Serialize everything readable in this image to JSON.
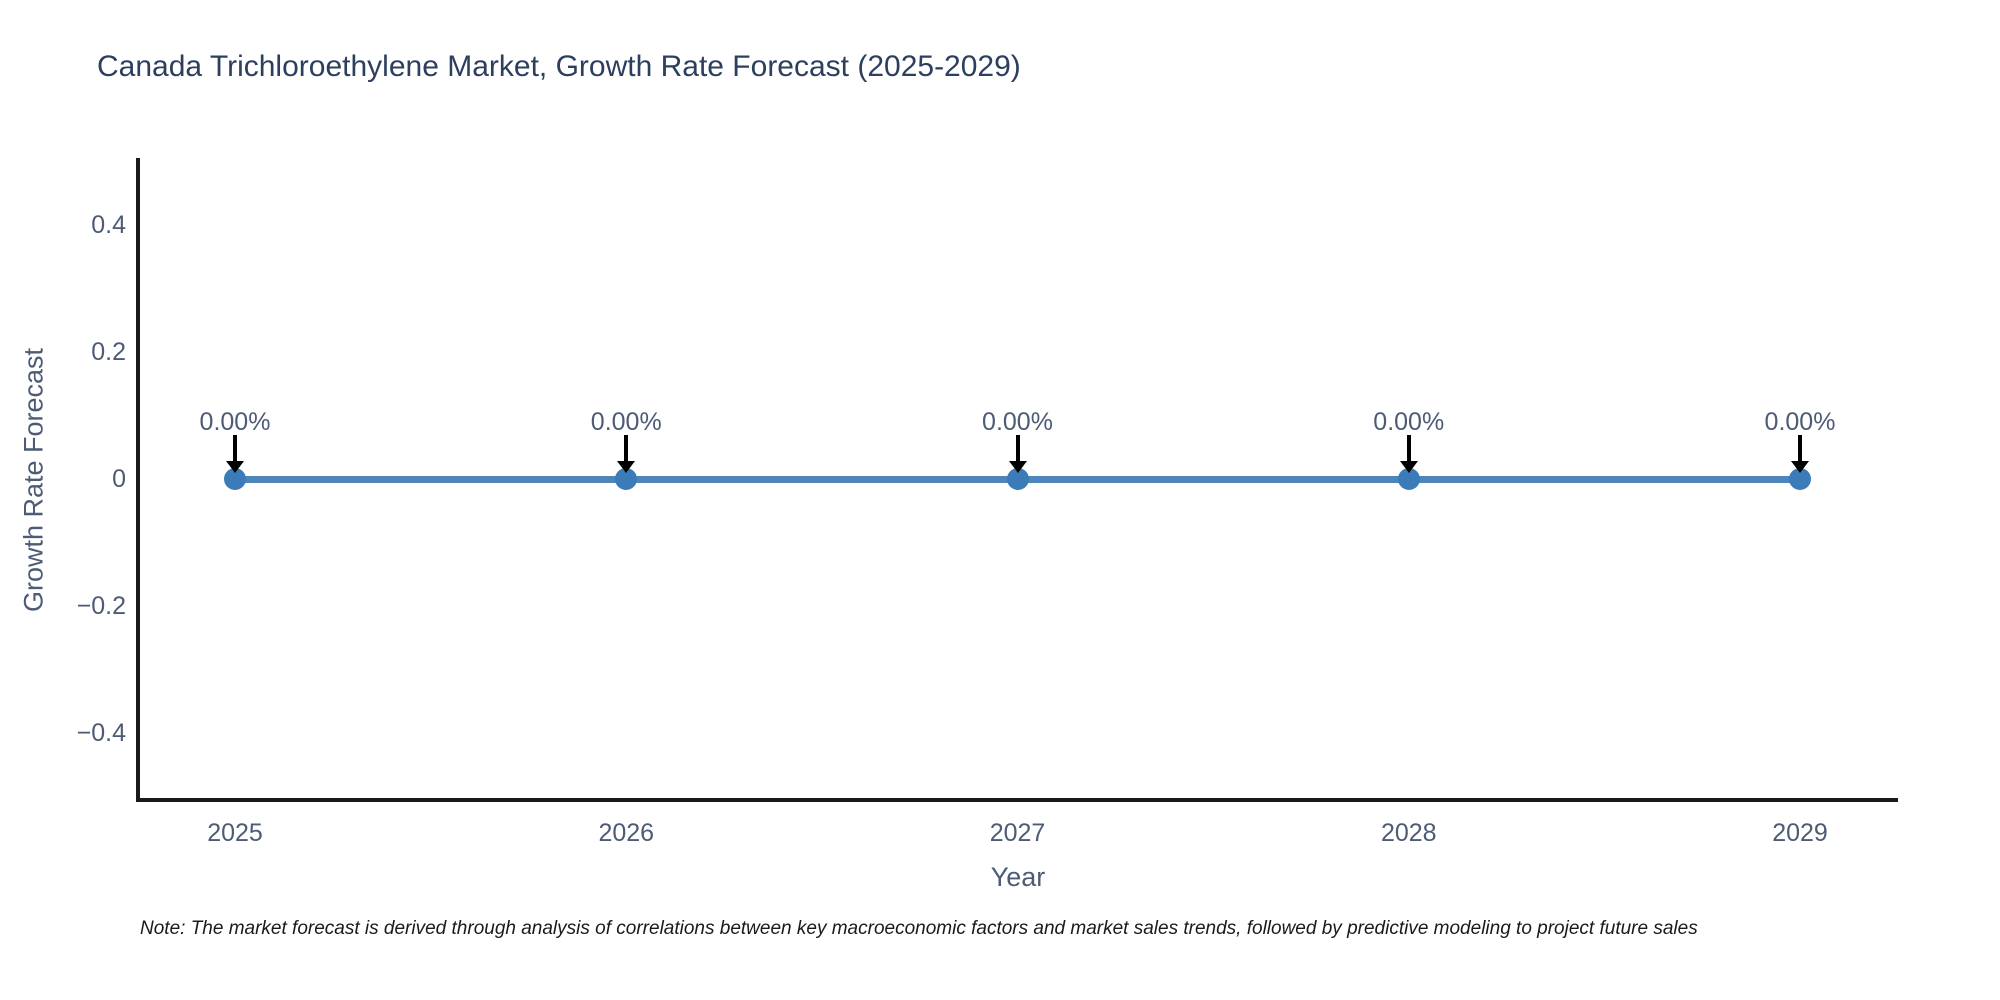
{
  "title": "Canada Trichloroethylene Market, Growth Rate Forecast (2025-2029)",
  "note": "Note: The market forecast is derived through analysis of correlations between key macroeconomic factors and market sales trends, followed by predictive modeling to project future sales",
  "chart_data": {
    "type": "line",
    "title": "Canada Trichloroethylene Market, Growth Rate Forecast (2025-2029)",
    "xlabel": "Year",
    "ylabel": "Growth Rate Forecast",
    "x": [
      2025,
      2026,
      2027,
      2028,
      2029
    ],
    "series": [
      {
        "name": "Growth Rate Forecast",
        "values": [
          0,
          0,
          0,
          0,
          0
        ]
      }
    ],
    "point_labels": [
      "0.00%",
      "0.00%",
      "0.00%",
      "0.00%",
      "0.00%"
    ],
    "y_ticks": [
      0.4,
      0.2,
      0,
      -0.2,
      -0.4
    ],
    "ylim": [
      -0.5,
      0.5
    ],
    "grid": false,
    "legend": "none",
    "annotation_arrows": "black arrows pointing down from each label to its data point",
    "colors": {
      "line": "#4e86ba",
      "marker": "#3b7cb8",
      "arrow": "#000000",
      "axis": "#1a1a1a",
      "title_text": "#2d3f5e",
      "tick_text": "#4d5b75",
      "note_text": "#1a1a1a"
    }
  }
}
